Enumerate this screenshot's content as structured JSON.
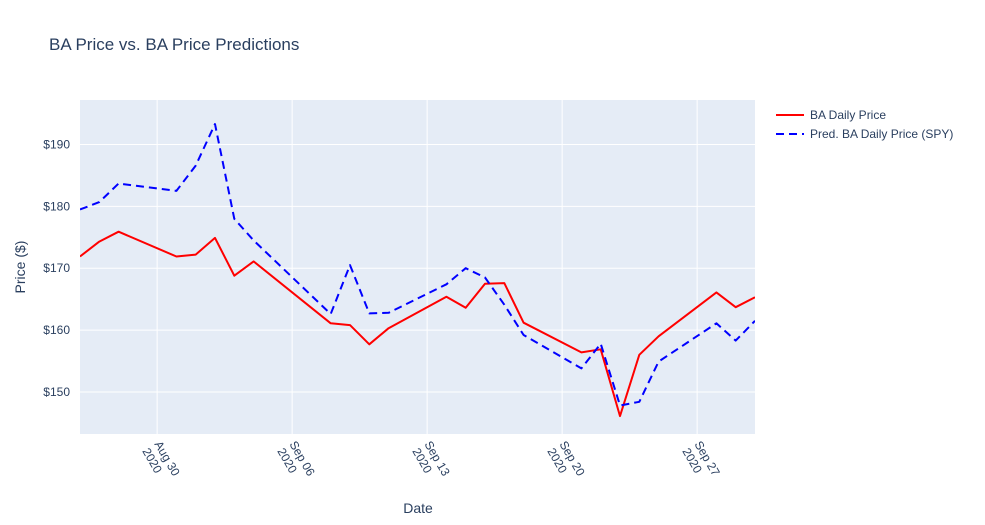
{
  "chart_data": {
    "type": "line",
    "title": "BA Price vs. BA Price Predictions",
    "xlabel": "Date",
    "ylabel": "Price ($)",
    "xlim": [
      "2020-08-26",
      "2020-09-30"
    ],
    "ylim": [
      143.2,
      197.2
    ],
    "yticks": [
      150,
      160,
      170,
      180,
      190
    ],
    "ytick_labels": [
      "$150",
      "$160",
      "$170",
      "$180",
      "$190"
    ],
    "xticks": [
      "2020-08-30",
      "2020-09-06",
      "2020-09-13",
      "2020-09-20",
      "2020-09-27"
    ],
    "xtick_labels": [
      [
        "Aug 30",
        "2020"
      ],
      [
        "Sep 06",
        "2020"
      ],
      [
        "Sep 13",
        "2020"
      ],
      [
        "Sep 20",
        "2020"
      ],
      [
        "Sep 27",
        "2020"
      ]
    ],
    "grid": true,
    "legend_position": "top-right",
    "colors": {
      "plot_bg": "#e5ecf6",
      "grid": "#ffffff",
      "text": "#2a3f5f",
      "actual": "#ff0000",
      "predicted": "#0000ff"
    },
    "series": [
      {
        "name": "BA Daily Price",
        "style": "solid",
        "x": [
          "2020-08-26",
          "2020-08-27",
          "2020-08-28",
          "2020-08-31",
          "2020-09-01",
          "2020-09-02",
          "2020-09-03",
          "2020-09-04",
          "2020-09-08",
          "2020-09-09",
          "2020-09-10",
          "2020-09-11",
          "2020-09-14",
          "2020-09-15",
          "2020-09-16",
          "2020-09-17",
          "2020-09-18",
          "2020-09-21",
          "2020-09-22",
          "2020-09-23",
          "2020-09-24",
          "2020-09-25",
          "2020-09-28",
          "2020-09-29",
          "2020-09-30"
        ],
        "y": [
          171.9,
          174.3,
          175.9,
          171.9,
          172.2,
          174.9,
          168.8,
          171.1,
          161.1,
          160.8,
          157.7,
          160.3,
          165.4,
          163.6,
          167.5,
          167.6,
          161.2,
          156.4,
          156.9,
          146.1,
          156.0,
          159.0,
          166.1,
          163.7,
          165.3
        ]
      },
      {
        "name": "Pred. BA Daily Price (SPY)",
        "style": "dash",
        "x": [
          "2020-08-26",
          "2020-08-27",
          "2020-08-28",
          "2020-08-31",
          "2020-09-01",
          "2020-09-02",
          "2020-09-03",
          "2020-09-04",
          "2020-09-08",
          "2020-09-09",
          "2020-09-10",
          "2020-09-11",
          "2020-09-14",
          "2020-09-15",
          "2020-09-16",
          "2020-09-17",
          "2020-09-18",
          "2020-09-21",
          "2020-09-22",
          "2020-09-23",
          "2020-09-24",
          "2020-09-25",
          "2020-09-28",
          "2020-09-29",
          "2020-09-30"
        ],
        "y": [
          179.5,
          180.7,
          183.7,
          182.5,
          186.6,
          193.3,
          178.0,
          174.5,
          162.6,
          170.5,
          162.7,
          162.8,
          167.4,
          170.0,
          168.5,
          164.1,
          159.2,
          153.8,
          157.8,
          147.8,
          148.4,
          154.9,
          161.1,
          158.3,
          161.5
        ]
      }
    ]
  }
}
